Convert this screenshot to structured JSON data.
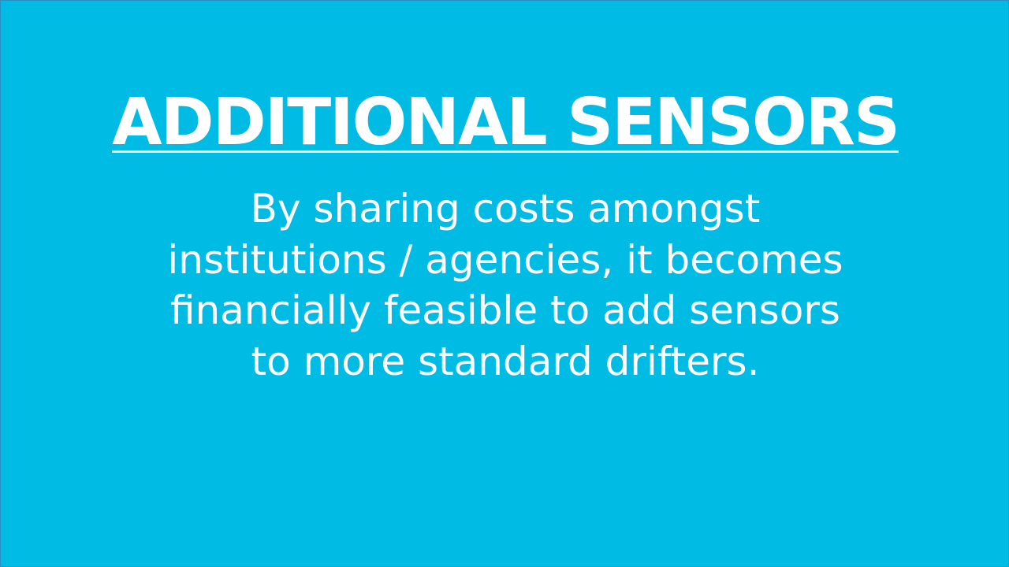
{
  "slide": {
    "title": "ADDITIONAL SENSORS",
    "body_lines": [
      "By sharing costs amongst",
      "institutions / agencies, it becomes",
      "financially feasible to add sensors",
      "to more standard drifters."
    ],
    "background_color": "#00BCE4",
    "text_color": "#FFFFFF"
  }
}
